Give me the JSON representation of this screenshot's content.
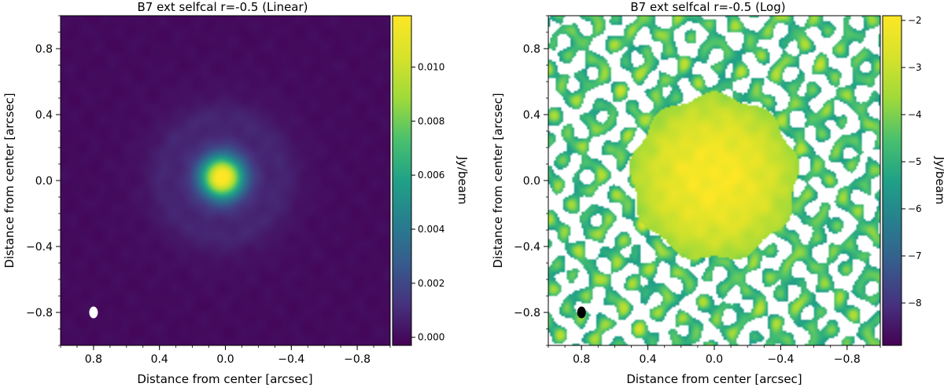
{
  "chart_data": [
    {
      "type": "heatmap",
      "title": "B7 ext selfcal r=-0.5 (Linear)",
      "xlabel": "Distance from center [arcsec]",
      "ylabel": "Distance from center [arcsec]",
      "xlim": [
        1.0,
        -1.0
      ],
      "ylim": [
        -1.0,
        1.0
      ],
      "xticks": [
        "0.8",
        "0.4",
        "0.0",
        "−0.4",
        "−0.8"
      ],
      "xtick_values": [
        0.8,
        0.4,
        0.0,
        -0.4,
        -0.8
      ],
      "yticks": [
        "−0.8",
        "−0.4",
        "0.0",
        "0.4",
        "0.8"
      ],
      "ytick_values": [
        -0.8,
        -0.4,
        0.0,
        0.4,
        0.8
      ],
      "colorbar": {
        "label": "Jy/beam",
        "range": [
          -0.0003,
          0.0119
        ],
        "ticks": [
          "0.000",
          "0.002",
          "0.004",
          "0.006",
          "0.008",
          "0.010"
        ],
        "tick_values": [
          0.0,
          0.002,
          0.004,
          0.006,
          0.008,
          0.01
        ],
        "colormap": "viridis"
      },
      "peak": {
        "x": 0.02,
        "y": 0.02,
        "value": 0.0115
      },
      "beam": {
        "x": 0.8,
        "y": -0.8,
        "color": "#ffffff"
      }
    },
    {
      "type": "heatmap",
      "title": "B7 ext selfcal r=-0.5 (Log)",
      "xlabel": "Distance from center [arcsec]",
      "ylabel": "Distance from center [arcsec]",
      "xlim": [
        1.0,
        -1.0
      ],
      "ylim": [
        -1.0,
        1.0
      ],
      "xticks": [
        "0.8",
        "0.4",
        "0.0",
        "−0.4",
        "−0.8"
      ],
      "xtick_values": [
        0.8,
        0.4,
        0.0,
        -0.4,
        -0.8
      ],
      "yticks": [
        "−0.8",
        "−0.4",
        "0.0",
        "0.4",
        "0.8"
      ],
      "ytick_values": [
        -0.8,
        -0.4,
        0.0,
        0.4,
        0.8
      ],
      "colorbar": {
        "label": "Jy/beam",
        "range": [
          -8.9,
          -1.9
        ],
        "ticks": [
          "−2",
          "−3",
          "−4",
          "−5",
          "−6",
          "−7",
          "−8"
        ],
        "tick_values": [
          -2,
          -3,
          -4,
          -5,
          -6,
          -7,
          -8
        ],
        "colormap": "viridis"
      },
      "peak": {
        "x": 0.0,
        "y": 0.02,
        "value": -2.0
      },
      "beam": {
        "x": 0.8,
        "y": -0.8,
        "color": "#000000"
      }
    }
  ]
}
